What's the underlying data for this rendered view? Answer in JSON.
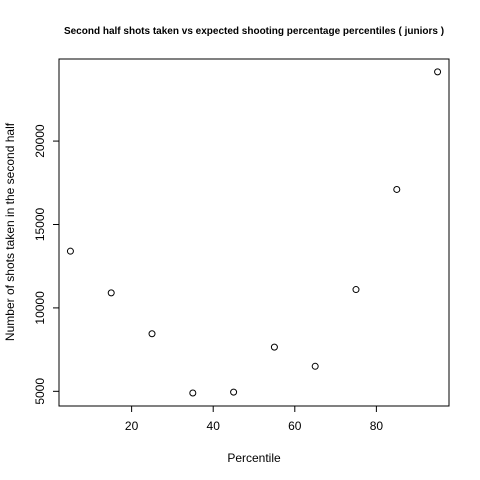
{
  "chart_data": {
    "type": "scatter",
    "title": "Second half shots taken vs expected shooting percentage percentiles ( juniors )",
    "xlabel": "Percentile",
    "ylabel": "Number of shots taken in the second half",
    "xlim": [
      2.2,
      97.8
    ],
    "ylim": [
      4120,
      24920
    ],
    "xticks": [
      20,
      40,
      60,
      80
    ],
    "yticks": [
      5000,
      10000,
      15000,
      20000
    ],
    "xtick_labels": [
      "20",
      "40",
      "60",
      "80"
    ],
    "ytick_labels": [
      "5000",
      "10000",
      "15000",
      "20000"
    ],
    "grid": false,
    "marker": "open-circle",
    "x": [
      5,
      15,
      25,
      35,
      45,
      55,
      65,
      75,
      85,
      95
    ],
    "y": [
      13400,
      10900,
      8450,
      4900,
      4950,
      7650,
      6500,
      11100,
      17100,
      24150
    ]
  }
}
